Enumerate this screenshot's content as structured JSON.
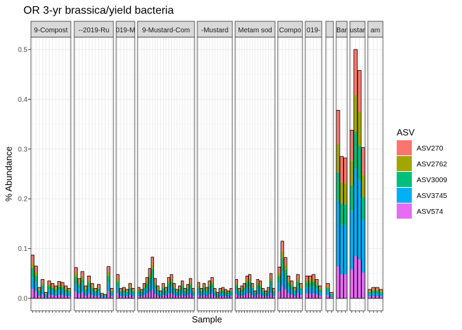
{
  "chart_data": {
    "type": "bar",
    "title": "OR 3-yr brassica/yield bacteria",
    "xlabel": "Sample",
    "ylabel": "% Abundance",
    "ylim": [
      0,
      0.52
    ],
    "yticks": [
      0.0,
      0.1,
      0.2,
      0.3,
      0.4,
      0.5
    ],
    "ytick_labels": [
      "0.0",
      "0.1",
      "0.2",
      "0.3",
      "0.4",
      "0.5"
    ],
    "grid": true,
    "legend": {
      "title": "ASV",
      "position": "right",
      "entries": [
        {
          "name": "ASV270",
          "color": "#F8766D"
        },
        {
          "name": "ASV2762",
          "color": "#A3A500"
        },
        {
          "name": "ASV3009",
          "color": "#00BF7D"
        },
        {
          "name": "ASV3745",
          "color": "#00B0F6"
        },
        {
          "name": "ASV574",
          "color": "#E76BF3"
        }
      ]
    },
    "series_order": [
      "ASV574",
      "ASV3745",
      "ASV3009",
      "ASV2762",
      "ASV270"
    ],
    "facets": [
      {
        "label": "9-Compost",
        "totals": [
          0.087,
          0.065,
          0.022,
          0.038,
          0.012,
          0.035,
          0.03,
          0.025,
          0.034,
          0.032,
          0.025,
          0.02
        ]
      },
      {
        "label": "--2019-Ru",
        "totals": [
          0.062,
          0.04,
          0.054,
          0.025,
          0.045,
          0.03,
          0.02,
          0.028,
          0.01,
          0.008,
          0.064,
          0.02
        ]
      },
      {
        "label": "019-M",
        "totals": [
          0.048,
          0.02,
          0.022,
          0.018,
          0.03,
          0.02
        ]
      },
      {
        "label": "9-Mustard-Com",
        "totals": [
          0.022,
          0.018,
          0.03,
          0.042,
          0.06,
          0.083,
          0.04,
          0.025,
          0.015,
          0.03,
          0.022,
          0.042,
          0.048,
          0.03,
          0.018,
          0.025,
          0.035,
          0.02,
          0.028,
          0.04,
          0.02
        ]
      },
      {
        "label": "-Mustard",
        "totals": [
          0.032,
          0.02,
          0.03,
          0.022,
          0.035,
          0.042,
          0.02,
          0.012,
          0.02,
          0.022,
          0.018,
          0.015,
          0.02
        ]
      },
      {
        "label": "Metam sod",
        "totals": [
          0.038,
          0.02,
          0.025,
          0.03,
          0.045,
          0.048,
          0.03,
          0.015,
          0.038,
          0.035,
          0.02,
          0.015,
          0.022,
          0.05,
          0.02
        ]
      },
      {
        "label": "Compo",
        "totals": [
          0.063,
          0.115,
          0.082,
          0.045,
          0.035,
          0.022,
          0.048,
          0.03
        ]
      },
      {
        "label": "019-",
        "totals": [
          0.045,
          0.045,
          0.048,
          0.038,
          0.025
        ]
      },
      {
        "label": "",
        "totals": [
          0.03,
          0.012
        ]
      },
      {
        "label": "Bar",
        "totals": [
          0.378,
          0.285,
          0.282
        ]
      },
      {
        "label": "ustar",
        "totals": [
          0.338,
          0.5,
          0.458,
          0.303
        ]
      },
      {
        "label": "am",
        "totals": [
          0.018,
          0.022,
          0.022,
          0.018
        ]
      }
    ]
  }
}
